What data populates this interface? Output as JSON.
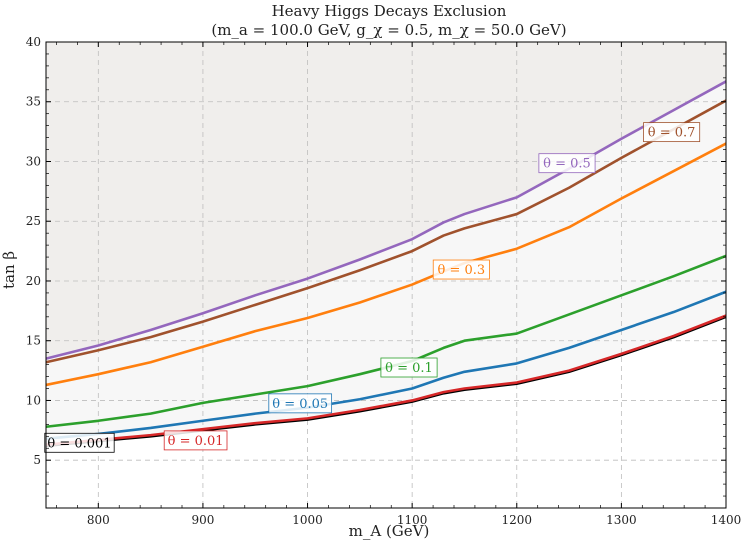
{
  "chart_data": {
    "type": "line",
    "title_line1": "Heavy Higgs Decays Exclusion",
    "title_line2": "(m_a = 100.0 GeV, g_χ = 0.5, m_χ = 50.0 GeV)",
    "xlabel": "m_A (GeV)",
    "ylabel": "tan β",
    "xlim": [
      750,
      1400
    ],
    "ylim": [
      1,
      40
    ],
    "xticks": [
      800,
      900,
      1000,
      1100,
      1200,
      1300,
      1400
    ],
    "yticks": [
      5,
      10,
      15,
      20,
      25,
      30,
      35,
      40
    ],
    "grid": true,
    "x": [
      750,
      800,
      850,
      900,
      950,
      1000,
      1050,
      1100,
      1130,
      1150,
      1200,
      1250,
      1300,
      1350,
      1400
    ],
    "series": [
      {
        "name": "θ = 0.001",
        "color": "#000000",
        "label_at": [
          782,
          6.5
        ],
        "values": [
          6.2,
          6.6,
          7.0,
          7.5,
          8.0,
          8.4,
          9.1,
          9.9,
          10.6,
          10.9,
          11.4,
          12.4,
          13.8,
          15.3,
          17.0
        ]
      },
      {
        "name": "θ = 0.01",
        "color": "#d62728",
        "label_at": [
          893,
          6.7
        ],
        "values": [
          6.3,
          6.7,
          7.1,
          7.6,
          8.1,
          8.5,
          9.2,
          10.0,
          10.7,
          11.0,
          11.5,
          12.5,
          13.9,
          15.4,
          17.1
        ]
      },
      {
        "name": "θ = 0.05",
        "color": "#1f77b4",
        "label_at": [
          993,
          9.8
        ],
        "values": [
          6.8,
          7.2,
          7.7,
          8.3,
          8.9,
          9.4,
          10.1,
          11.0,
          11.9,
          12.4,
          13.1,
          14.4,
          15.9,
          17.4,
          19.1
        ]
      },
      {
        "name": "θ = 0.1",
        "color": "#2ca02c",
        "label_at": [
          1097,
          12.8
        ],
        "values": [
          7.8,
          8.3,
          8.9,
          9.8,
          10.5,
          11.2,
          12.2,
          13.3,
          14.4,
          15.0,
          15.6,
          17.2,
          18.8,
          20.4,
          22.1
        ]
      },
      {
        "name": "θ = 0.3",
        "color": "#ff7f0e",
        "label_at": [
          1147,
          21.0
        ],
        "values": [
          11.3,
          12.2,
          13.2,
          14.5,
          15.8,
          16.9,
          18.2,
          19.7,
          20.8,
          21.5,
          22.7,
          24.5,
          26.9,
          29.2,
          31.5
        ]
      },
      {
        "name": "θ = 0.5",
        "color": "#9467bd",
        "label_at": [
          1248,
          29.9
        ],
        "values": [
          13.5,
          14.6,
          15.9,
          17.3,
          18.8,
          20.2,
          21.8,
          23.5,
          24.9,
          25.6,
          27.0,
          29.4,
          31.9,
          34.3,
          36.7
        ]
      },
      {
        "name": "θ = 0.7",
        "color": "#a0522d",
        "label_at": [
          1348,
          32.5
        ],
        "values": [
          13.2,
          14.2,
          15.3,
          16.6,
          18.0,
          19.4,
          20.9,
          22.5,
          23.8,
          24.4,
          25.6,
          27.8,
          30.3,
          32.7,
          35.1
        ]
      }
    ],
    "colors": {
      "band_upper": "#f0eeec",
      "band_lower": "#f7f7f7",
      "grid": "#bdbdbd",
      "axis": "#000000"
    }
  }
}
